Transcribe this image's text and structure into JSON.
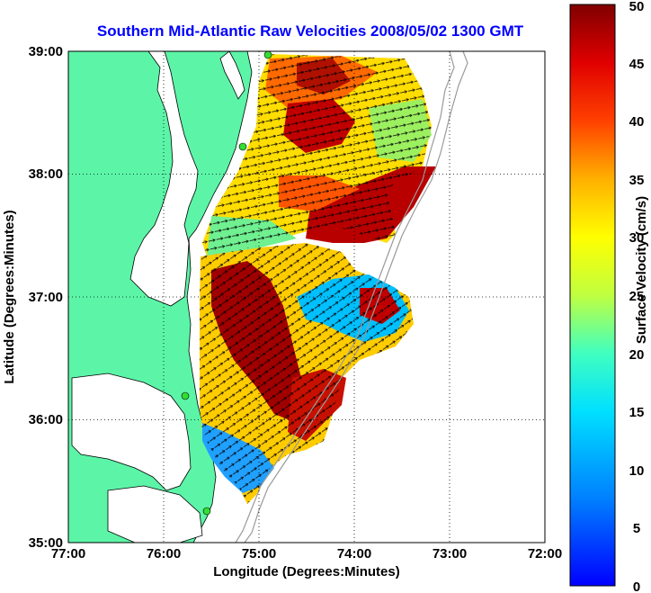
{
  "title": "Southern Mid-Atlantic Raw Velocities 2008/05/02 1300 GMT",
  "map": {
    "xlabel": "Longitude (Degrees:Minutes)",
    "ylabel": "Latitude (Degrees:Minutes)",
    "lon_range": [
      -77,
      -72
    ],
    "lat_range": [
      35,
      39
    ],
    "x_ticks": [
      "77:00",
      "76:00",
      "75:00",
      "74:00",
      "73:00",
      "72:00"
    ],
    "y_ticks": [
      "39:00",
      "38:00",
      "37:00",
      "36:00",
      "35:00"
    ],
    "grid": "dotted",
    "land_color": "#5cf5a8",
    "coast_color": "#000000",
    "bathymetry_color": "#9a9a9a",
    "station_color": "#33dd33"
  },
  "colorbar": {
    "label": "Surface Velocity (cm/s)",
    "range": [
      0,
      50
    ],
    "ticks": [
      "0",
      "5",
      "10",
      "15",
      "20",
      "25",
      "30",
      "35",
      "40",
      "45",
      "50"
    ],
    "colormap": "jet"
  },
  "chart_data": {
    "type": "heatmap",
    "title": "Southern Mid-Atlantic Raw Velocities 2008/05/02 1300 GMT",
    "xlabel": "Longitude (Degrees:Minutes)",
    "ylabel": "Latitude (Degrees:Minutes)",
    "xlim": [
      -77,
      -72
    ],
    "ylim": [
      35,
      39
    ],
    "value_label": "Surface Velocity (cm/s)",
    "value_range": [
      0,
      50
    ],
    "stations": [
      {
        "lon": -74.9,
        "lat": 39.0
      },
      {
        "lon": -75.17,
        "lat": 38.22
      },
      {
        "lon": -75.97,
        "lat": 36.18
      },
      {
        "lon": -75.52,
        "lat": 35.25
      }
    ]
  }
}
